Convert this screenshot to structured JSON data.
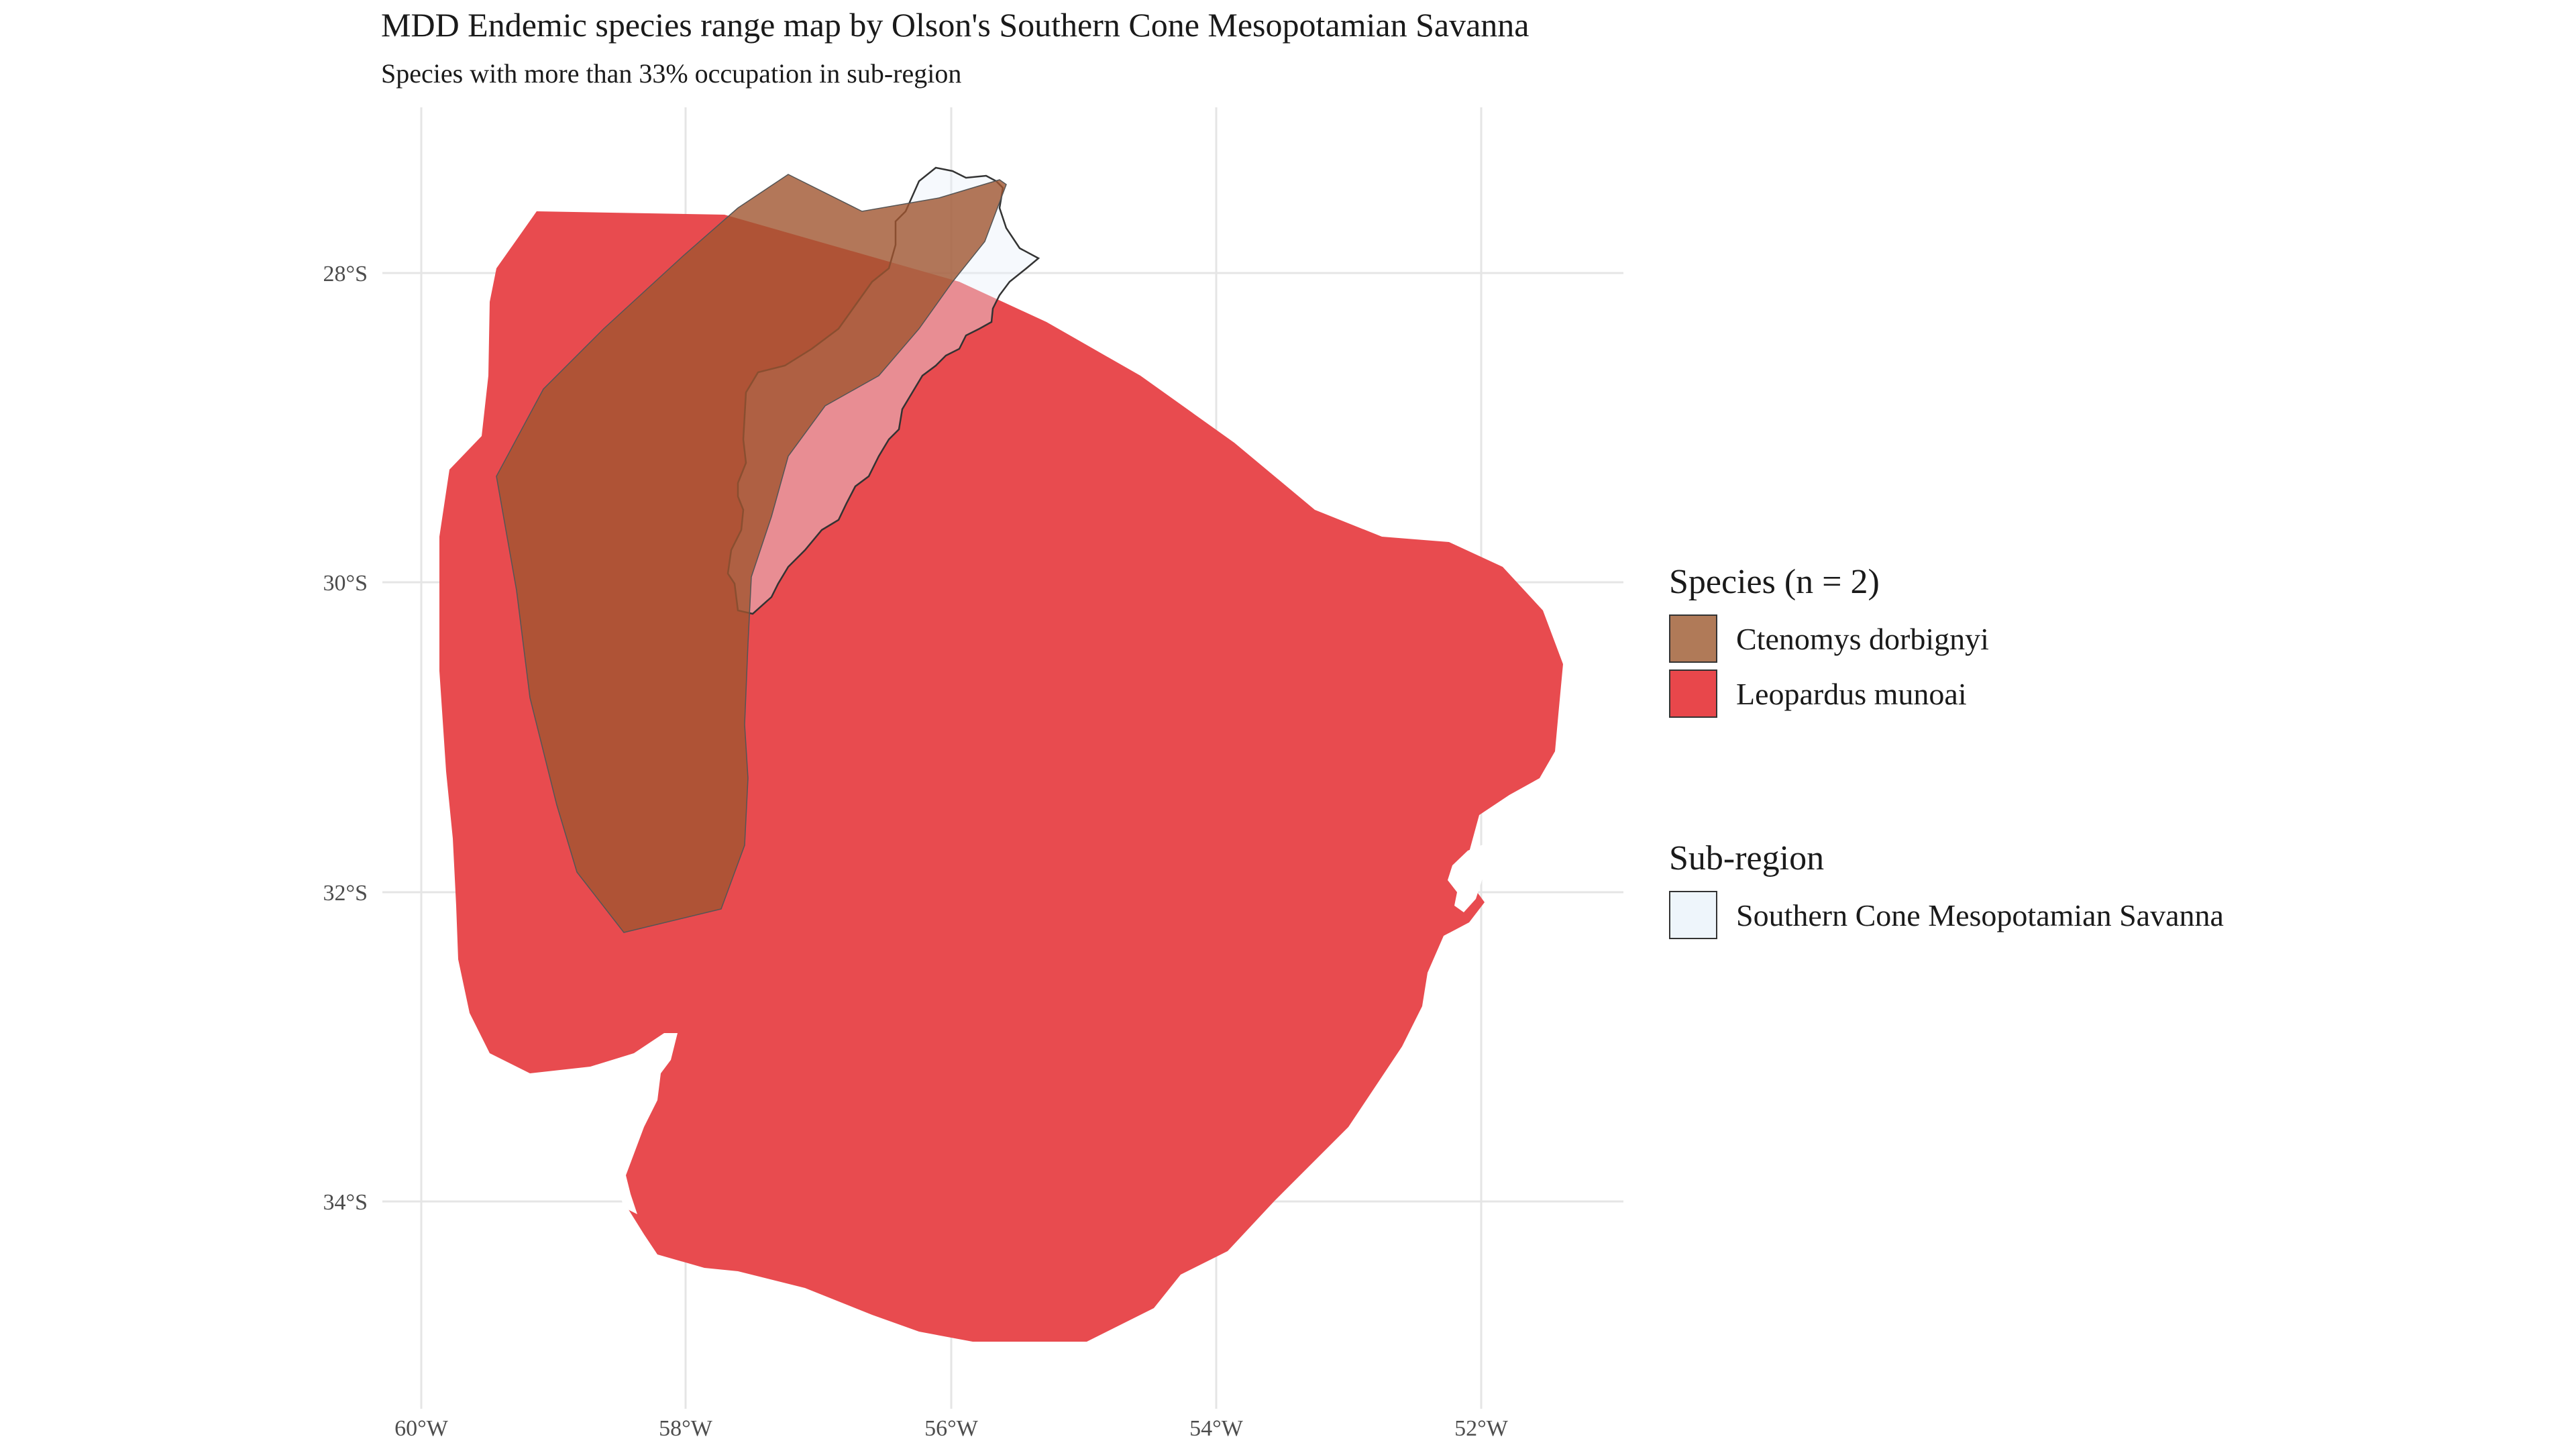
{
  "title": "MDD Endemic species range map by Olson's Southern Cone Mesopotamian Savanna",
  "subtitle": "Species with more than 33% occupation in sub-region",
  "axes": {
    "x_ticks": [
      "60°W",
      "58°W",
      "56°W",
      "54°W",
      "52°W"
    ],
    "y_ticks": [
      "28°S",
      "30°S",
      "32°S",
      "34°S"
    ],
    "grid": true
  },
  "legend_species": {
    "title": "Species (n = 2)",
    "items": [
      {
        "label": "Ctenomys dorbignyi",
        "color": "#b07a58"
      },
      {
        "label": "Leopardus munoai",
        "color": "#e8474b"
      }
    ]
  },
  "legend_region": {
    "title": "Sub-region",
    "items": [
      {
        "label": "Southern Cone Mesopotamian Savanna",
        "color": "#eef5fb"
      }
    ]
  },
  "colors": {
    "leopardus": "#e8474b",
    "ctenomys": "#a0552f",
    "region_fill": "#eef5fb",
    "region_stroke": "#333333",
    "grid": "#e5e5e5"
  }
}
